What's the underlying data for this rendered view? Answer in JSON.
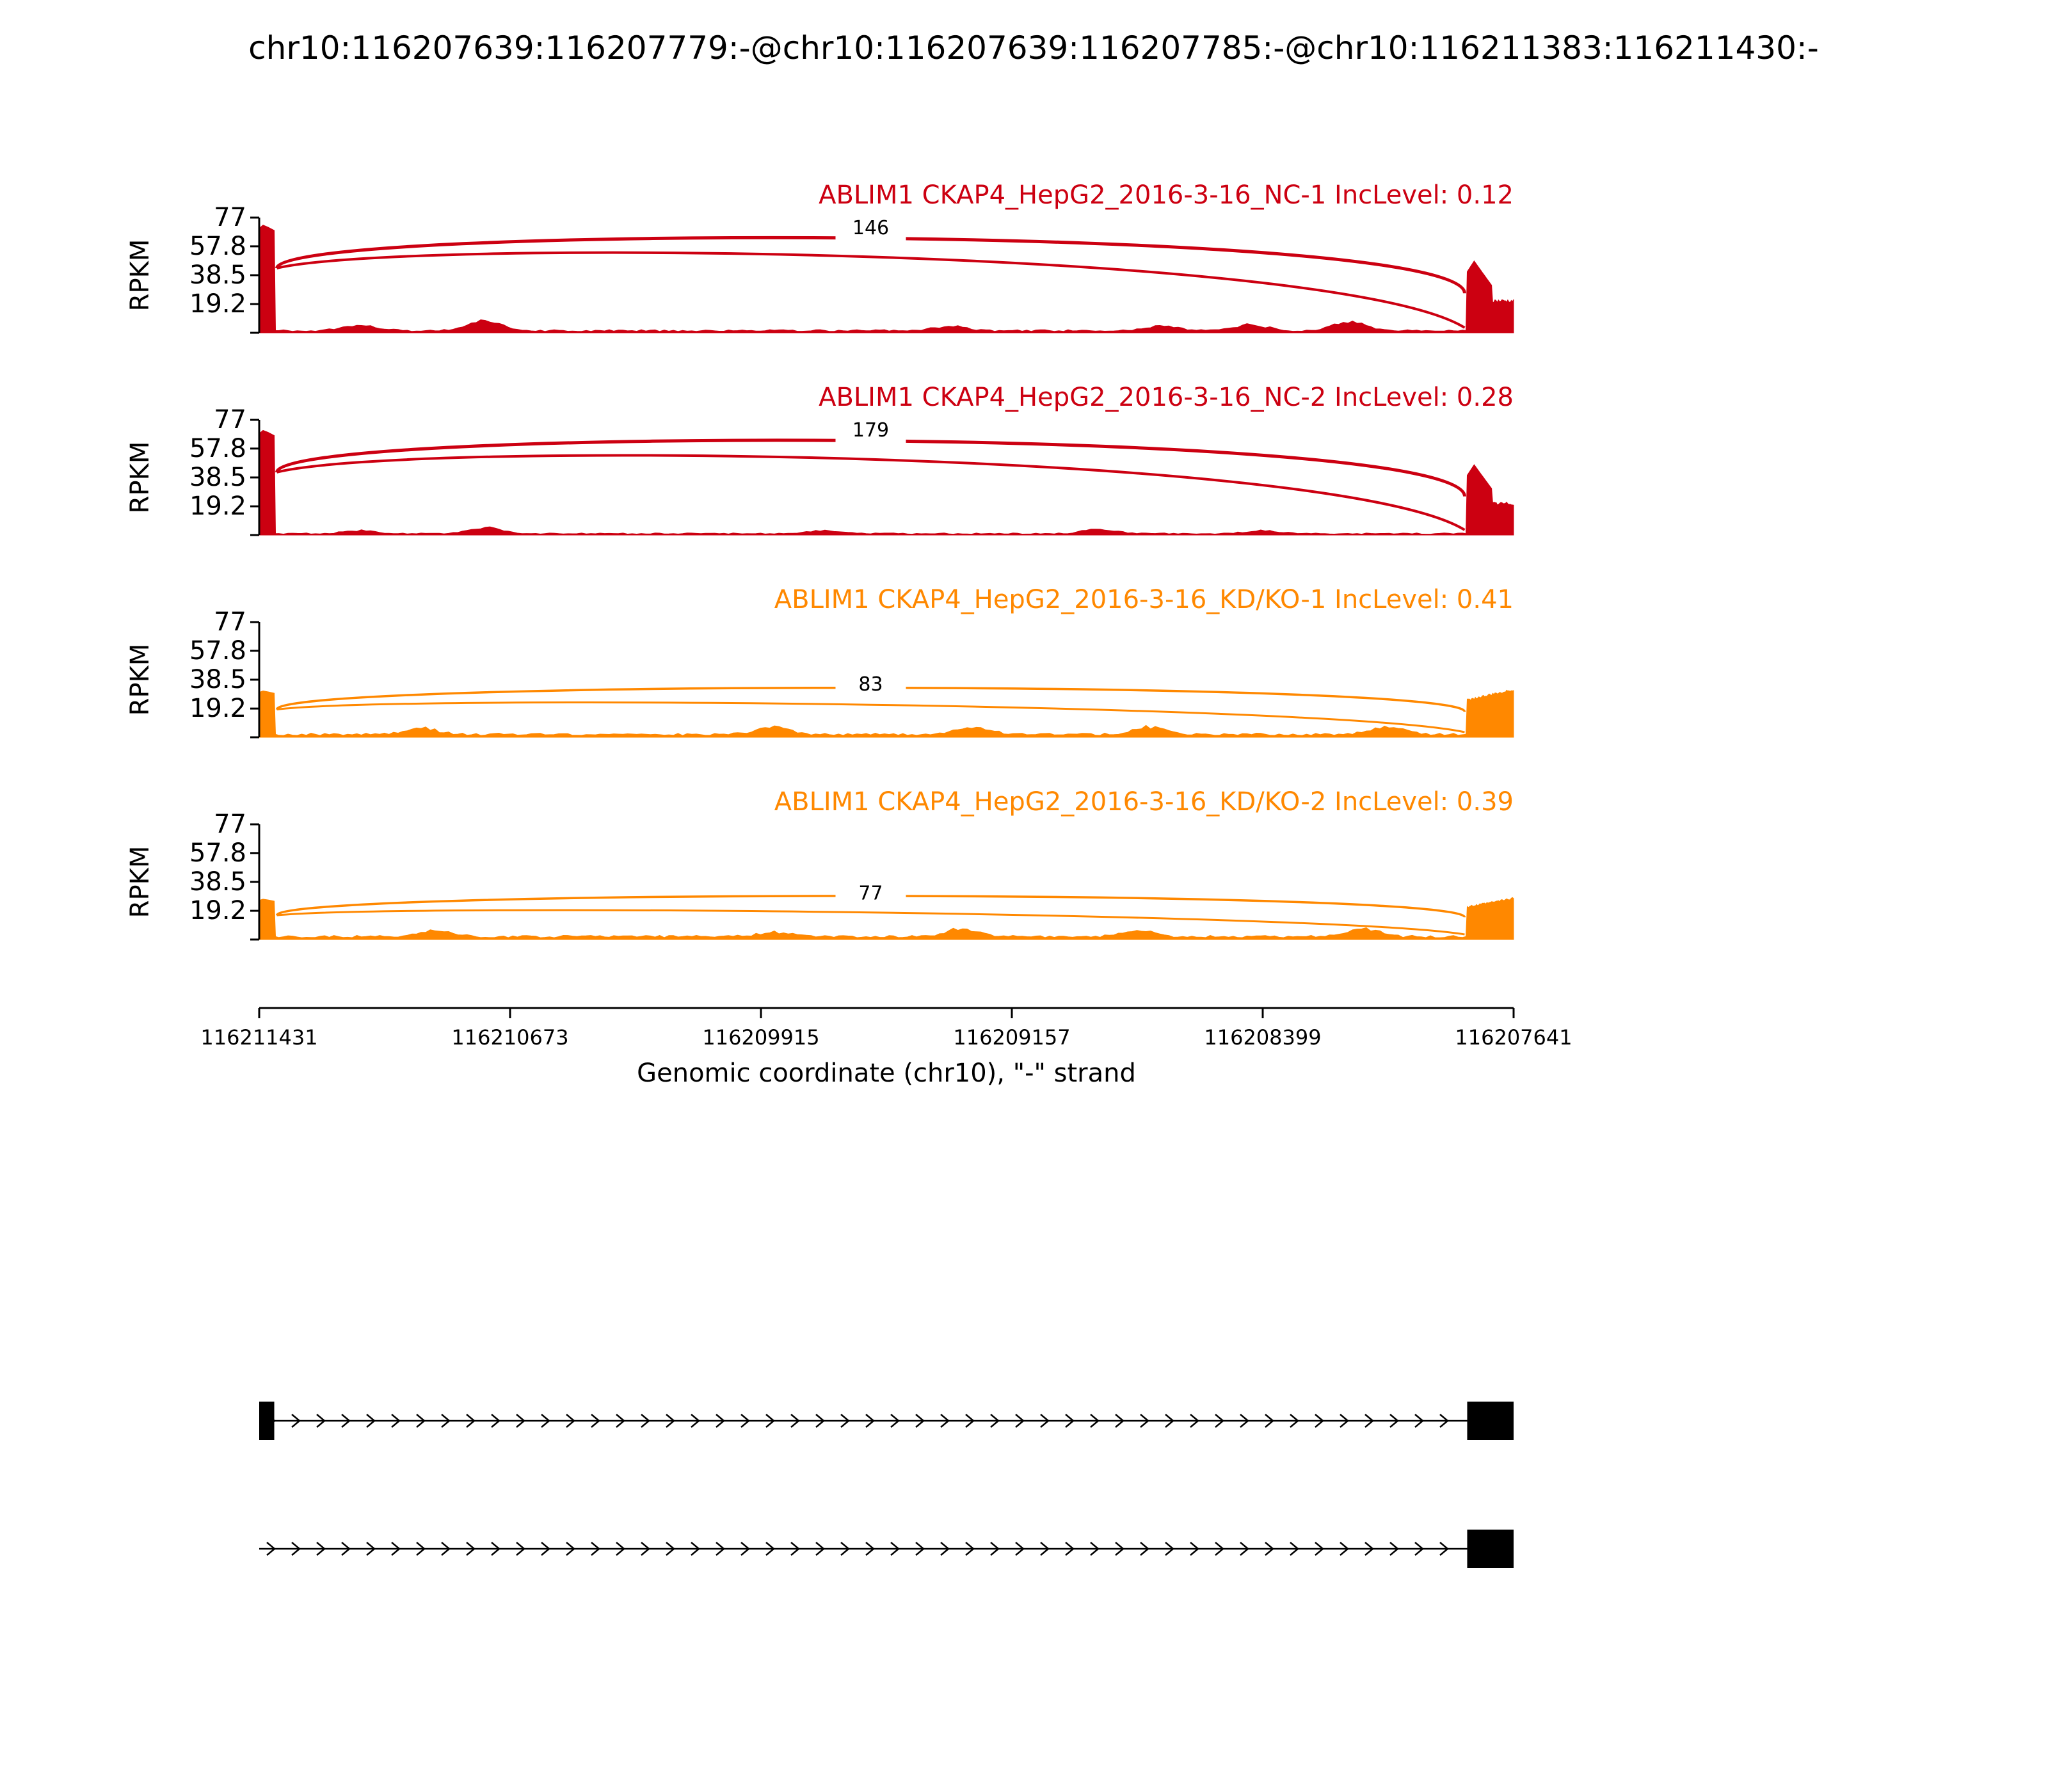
{
  "figure": {
    "title": "chr10:116207639:116207779:-@chr10:116207639:116207785:-@chr10:116211383:116211430:-",
    "background": "#ffffff"
  },
  "chart_data": {
    "type": "area",
    "ylabel": "RPKM",
    "ylim": [
      0,
      77
    ],
    "yticks": [
      "77",
      "57.8",
      "38.5",
      "19.2"
    ],
    "xlabel": "Genomic coordinate (chr10), \"-\" strand",
    "xticks": [
      "116211431",
      "116210673",
      "116209915",
      "116209157",
      "116208399",
      "116207641"
    ],
    "xlim": [
      116211431,
      116207641
    ],
    "grid": false,
    "tracks": [
      {
        "title": "ABLIM1 CKAP4_HepG2_2016-3-16_NC-1 IncLevel: 0.12",
        "color": "#cc0011",
        "junction_label": "146",
        "exon_left_height": 72,
        "exon_right_height": 48,
        "intron_level": 1.5,
        "bumps": [
          [
            0.08,
            4
          ],
          [
            0.18,
            7
          ],
          [
            0.55,
            3
          ],
          [
            0.72,
            3
          ],
          [
            0.79,
            4
          ],
          [
            0.87,
            6
          ]
        ]
      },
      {
        "title": "ABLIM1 CKAP4_HepG2_2016-3-16_NC-2 IncLevel: 0.28",
        "color": "#cc0011",
        "junction_label": "179",
        "exon_left_height": 70,
        "exon_right_height": 47,
        "intron_level": 1.0,
        "bumps": [
          [
            0.08,
            2
          ],
          [
            0.18,
            4
          ],
          [
            0.45,
            2
          ],
          [
            0.67,
            3
          ],
          [
            0.8,
            2
          ]
        ]
      },
      {
        "title": "ABLIM1 CKAP4_HepG2_2016-3-16_KD/KO-1 IncLevel: 0.41",
        "color": "#ff8800",
        "junction_label": "83",
        "exon_left_height": 31,
        "exon_right_height": 31,
        "intron_level": 2.0,
        "bumps": [
          [
            0.13,
            4
          ],
          [
            0.41,
            5
          ],
          [
            0.57,
            5
          ],
          [
            0.71,
            5
          ],
          [
            0.9,
            5
          ]
        ]
      },
      {
        "title": "ABLIM1 CKAP4_HepG2_2016-3-16_KD/KO-2 IncLevel: 0.39",
        "color": "#ff8800",
        "junction_label": "77",
        "exon_left_height": 27,
        "exon_right_height": 27,
        "intron_level": 2.0,
        "bumps": [
          [
            0.14,
            4
          ],
          [
            0.41,
            3
          ],
          [
            0.56,
            5
          ],
          [
            0.7,
            4
          ],
          [
            0.88,
            5
          ]
        ]
      }
    ],
    "isoforms": [
      {
        "exons": [
          [
            0.0,
            0.012
          ],
          [
            0.963,
            1.0
          ]
        ]
      },
      {
        "exons": [
          [
            0.963,
            1.0
          ]
        ]
      }
    ]
  }
}
